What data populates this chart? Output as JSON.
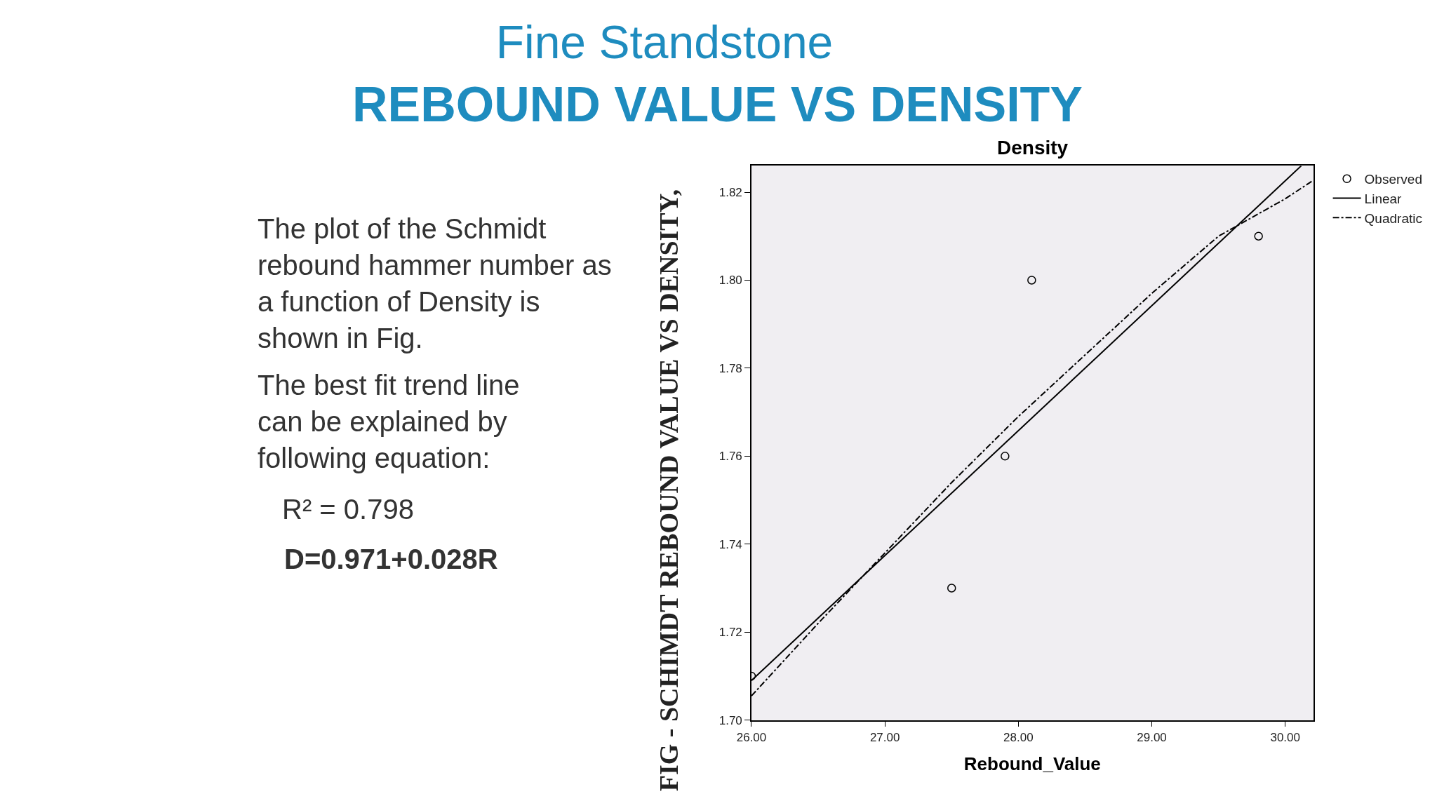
{
  "chart_data": {
    "type": "scatter",
    "title": "Fine Standstone",
    "subtitle": "REBOUND VALUE VS DENSITY",
    "xlabel": "Rebound_Value",
    "annotations": [
      "Density",
      "The plot of the Schmidt rebound hammer number as a function of Density is shown in Fig.",
      "The best fit trend line can be explained by following equation:",
      "R² = 0.798",
      "D=0.971+0.028R",
      "FIG - SCHIMDT REBOUND VALUE VS DENSITY,"
    ],
    "series": [
      {
        "name": "Observed",
        "color": "#000000",
        "marker": "circle",
        "x": [
          26.0,
          27.5,
          27.9,
          28.1,
          29.8
        ],
        "values": [
          1.71,
          1.73,
          1.76,
          1.8,
          1.81
        ]
      },
      {
        "name": "Linear",
        "type": "line",
        "color": "#000000",
        "line_style": "solid",
        "x": [
          26.0,
          30.12
        ],
        "values": [
          1.709,
          1.826
        ]
      },
      {
        "name": "Quadratic",
        "type": "line",
        "color": "#000000",
        "line_style": "dashed",
        "x": [
          26.0,
          26.5,
          27.0,
          27.5,
          28.0,
          28.5,
          29.0,
          29.5,
          30.0,
          30.2
        ],
        "values": [
          1.7055,
          1.722,
          1.738,
          1.754,
          1.769,
          1.783,
          1.797,
          1.81,
          1.8185,
          1.8225
        ]
      }
    ],
    "xlim": [
      26.0,
      30.21
    ],
    "ylim": [
      1.7,
      1.826
    ],
    "xticks": [
      {
        "value": 26,
        "label": "26.00"
      },
      {
        "value": 27,
        "label": "27.00"
      },
      {
        "value": 28,
        "label": "28.00"
      },
      {
        "value": 29,
        "label": "29.00"
      },
      {
        "value": 30,
        "label": "30.00"
      }
    ],
    "yticks": [
      {
        "value": 1.7,
        "label": "1.70"
      },
      {
        "value": 1.72,
        "label": "1.72"
      },
      {
        "value": 1.74,
        "label": "1.74"
      },
      {
        "value": 1.76,
        "label": "1.76"
      },
      {
        "value": 1.78,
        "label": "1.78"
      },
      {
        "value": 1.8,
        "label": "1.80"
      },
      {
        "value": 1.82,
        "label": "1.82"
      }
    ],
    "grid": false,
    "legend": "top right"
  }
}
